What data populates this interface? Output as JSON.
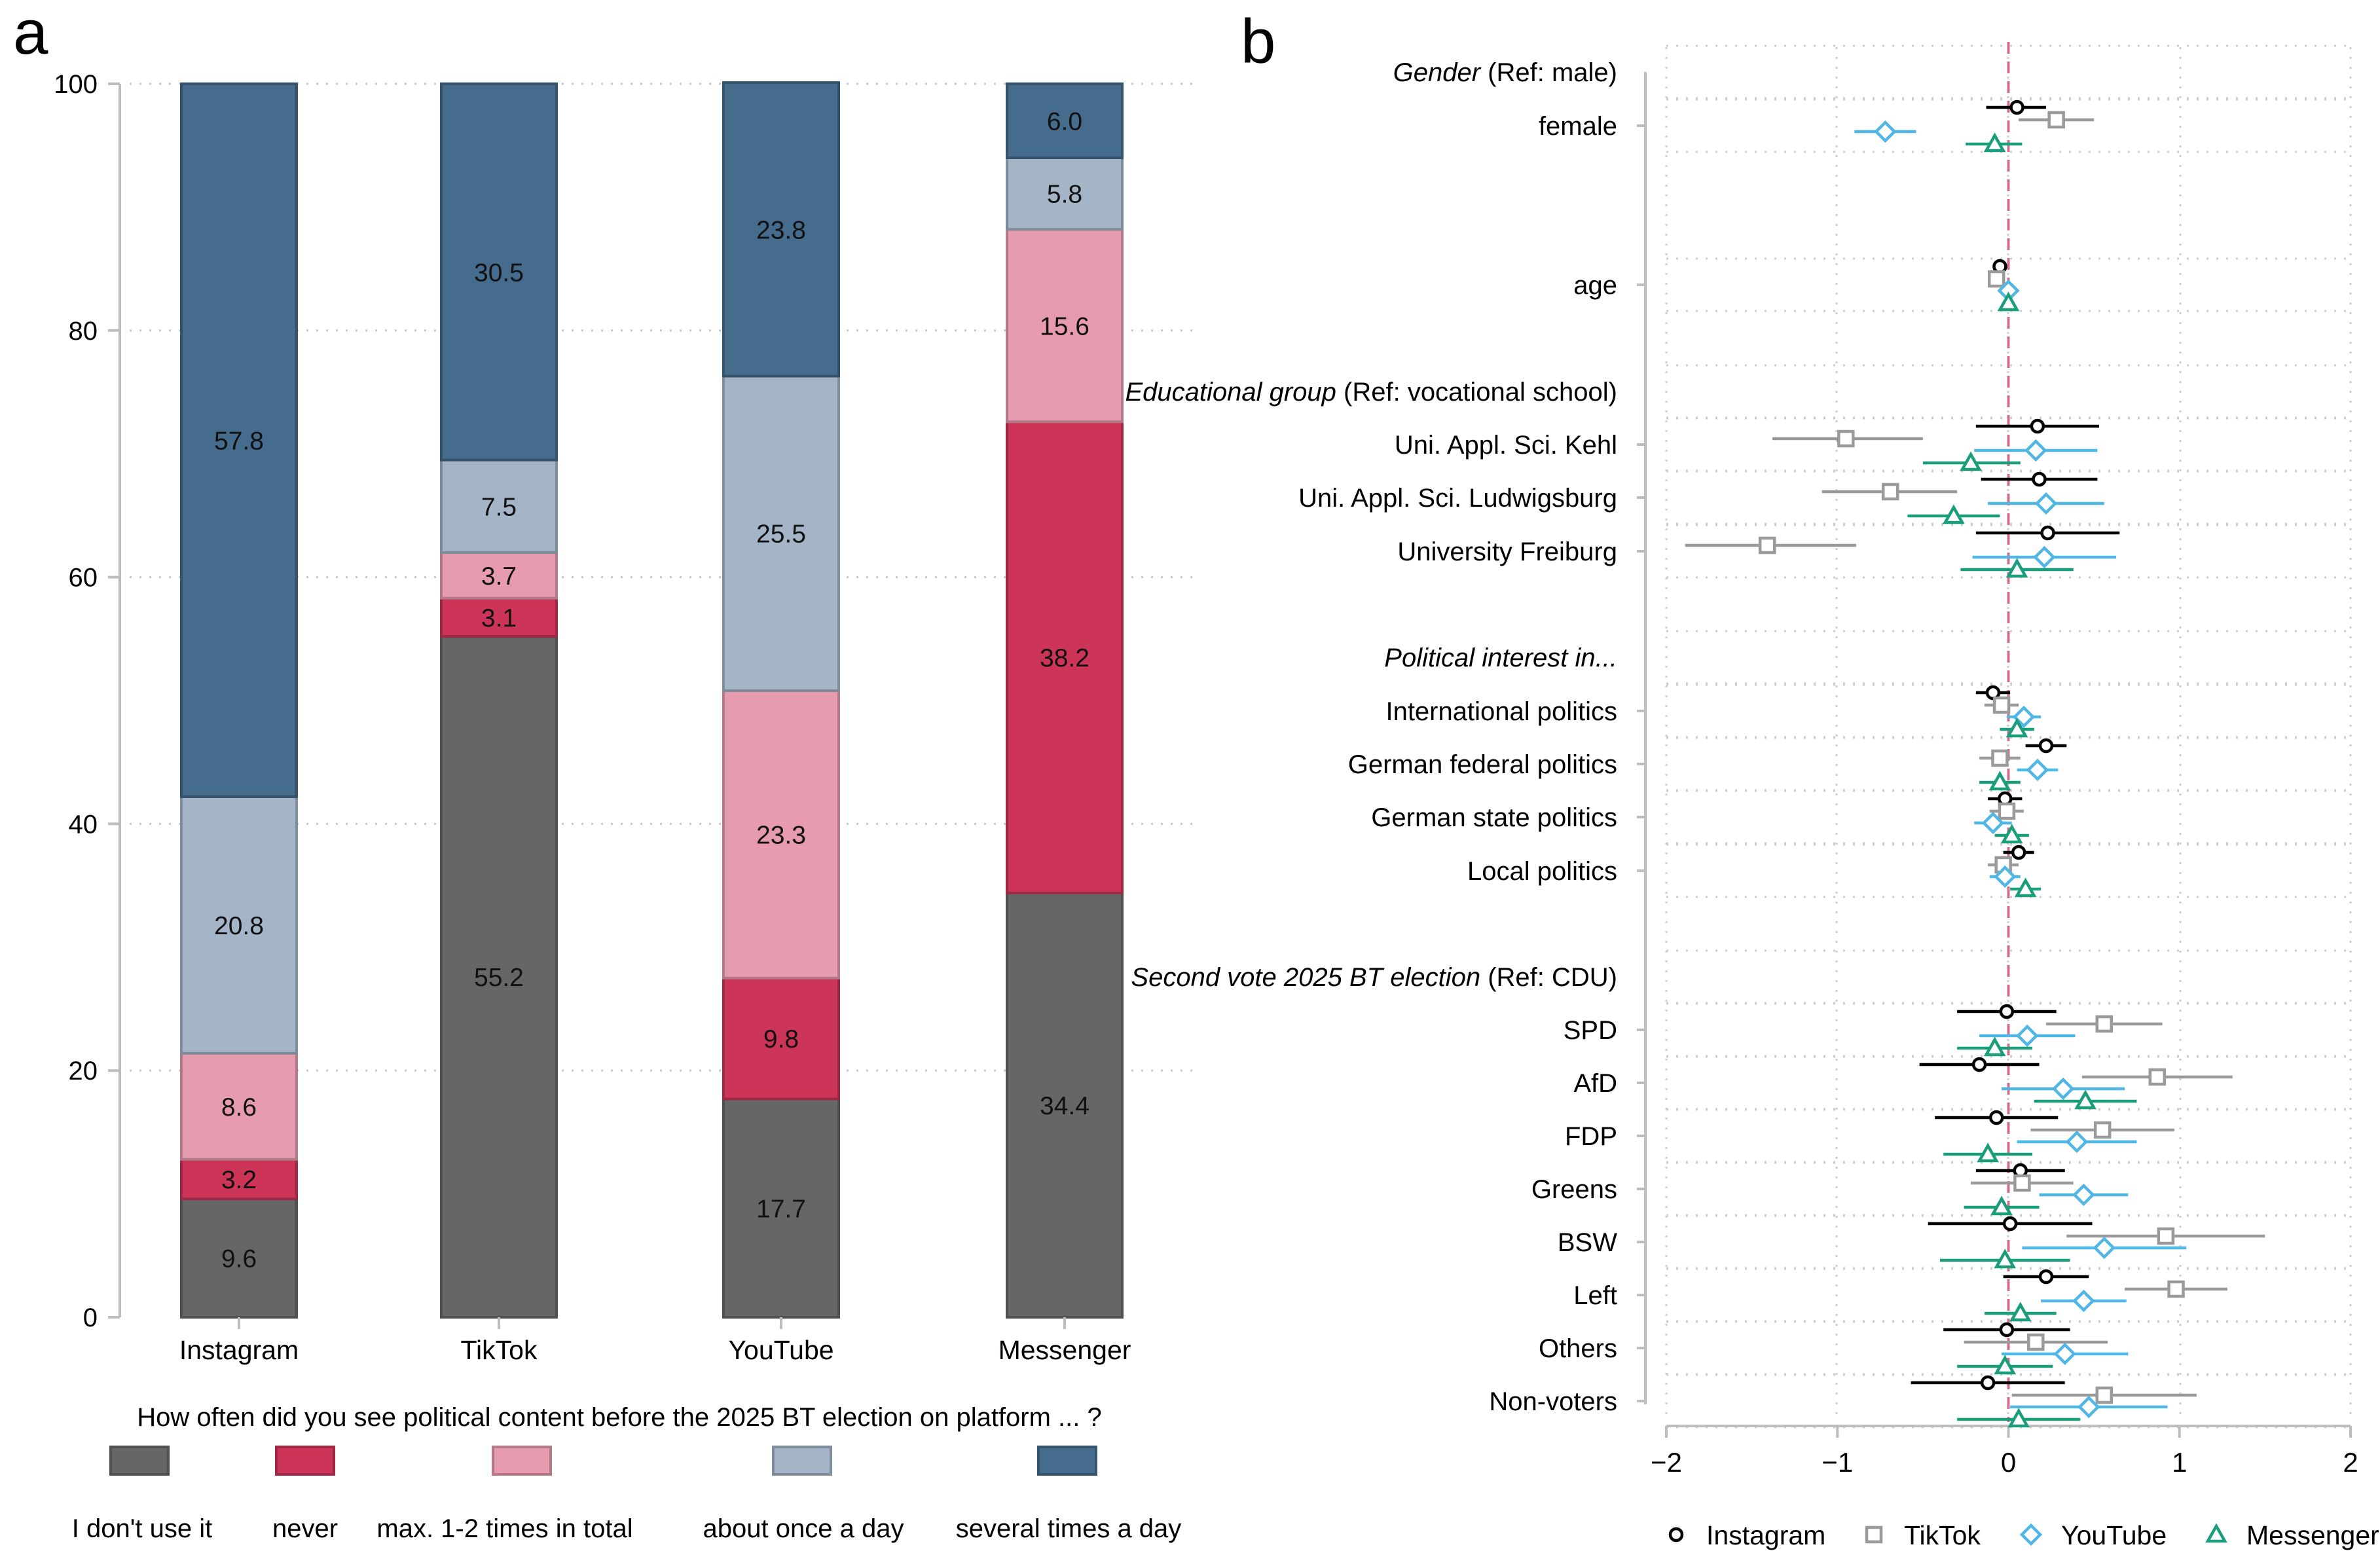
{
  "panel_labels": {
    "a": "a",
    "b": "b"
  },
  "colors": {
    "dont_use": "#666666",
    "never": "#cc3558",
    "max12": "#e79baf",
    "once_day": "#a3b5c7",
    "several_day": "#456b8d",
    "instagram": "#000000",
    "tiktok": "#9a9a9a",
    "youtube": "#4fb6e6",
    "messenger": "#1a9d7a",
    "refline": "#d4708e"
  },
  "chart_data": [
    {
      "type": "bar",
      "panel": "a",
      "stacked": true,
      "categories": [
        "Instagram",
        "TikTok",
        "YouTube",
        "Messenger"
      ],
      "ylim": [
        0,
        100
      ],
      "yticks": [
        0,
        20,
        40,
        60,
        80,
        100
      ],
      "grid": true,
      "series": [
        {
          "key": "dont_use",
          "name": "I don't use it",
          "values": [
            9.6,
            55.2,
            17.7,
            34.4
          ],
          "labels": [
            "9.6",
            "55.2",
            "17.7",
            "34.4"
          ]
        },
        {
          "key": "never",
          "name": "never",
          "values": [
            3.2,
            3.1,
            9.8,
            38.2
          ],
          "labels": [
            "3.2",
            "3.1",
            "9.8",
            "38.2"
          ]
        },
        {
          "key": "max12",
          "name": "max. 1-2 times in total",
          "values": [
            8.6,
            3.7,
            23.3,
            15.6
          ],
          "labels": [
            "8.6",
            "3.7",
            "23.3",
            "15.6"
          ]
        },
        {
          "key": "once_day",
          "name": "about once a day",
          "values": [
            20.8,
            7.5,
            25.5,
            5.8
          ],
          "labels": [
            "20.8",
            "7.5",
            "25.5",
            "5.8"
          ]
        },
        {
          "key": "several_day",
          "name": "several times a day",
          "values": [
            57.8,
            30.5,
            23.8,
            6.0
          ],
          "labels": [
            "57.8",
            "30.5",
            "23.8",
            "6.0"
          ]
        }
      ],
      "legend_title": "How often did you see political content before the 2025 BT election on platform ... ?",
      "legend_position": "bottom"
    },
    {
      "type": "scatter",
      "subtype": "coefficient-plot",
      "panel": "b",
      "xlim": [
        -2,
        2
      ],
      "xticks": [
        -2,
        -1,
        0,
        1,
        2
      ],
      "xtick_labels": [
        "−2",
        "−1",
        "0",
        "1",
        "2"
      ],
      "reference_line": 0,
      "series_names": [
        "Instagram",
        "TikTok",
        "YouTube",
        "Messenger"
      ],
      "series_keys": [
        "instagram",
        "tiktok",
        "youtube",
        "messenger"
      ],
      "markers": [
        "circle",
        "square",
        "diamond",
        "triangle"
      ],
      "legend_position": "bottom",
      "rows": [
        {
          "type": "header",
          "italic": "Gender",
          "rest": " (Ref: male)"
        },
        {
          "type": "var",
          "label": "female",
          "est": [
            [
              0.05,
              -0.13,
              0.22
            ],
            [
              0.28,
              0.06,
              0.5
            ],
            [
              -0.72,
              -0.9,
              -0.54
            ],
            [
              -0.08,
              -0.25,
              0.08
            ]
          ]
        },
        {
          "type": "gap"
        },
        {
          "type": "var",
          "label": "age",
          "est": [
            [
              -0.05,
              -0.07,
              -0.03
            ],
            [
              -0.07,
              -0.09,
              -0.05
            ],
            [
              0.0,
              -0.02,
              0.02
            ],
            [
              0.0,
              -0.02,
              0.02
            ]
          ]
        },
        {
          "type": "header",
          "italic": "Educational group",
          "rest": "  (Ref: vocational school)"
        },
        {
          "type": "var",
          "label": "Uni. Appl. Sci. Kehl",
          "est": [
            [
              0.17,
              -0.19,
              0.53
            ],
            [
              -0.95,
              -1.38,
              -0.5
            ],
            [
              0.16,
              -0.2,
              0.52
            ],
            [
              -0.22,
              -0.5,
              0.07
            ]
          ]
        },
        {
          "type": "var",
          "label": "Uni. Appl. Sci. Ludwigsburg",
          "est": [
            [
              0.18,
              -0.16,
              0.52
            ],
            [
              -0.69,
              -1.09,
              -0.3
            ],
            [
              0.22,
              -0.12,
              0.56
            ],
            [
              -0.32,
              -0.59,
              -0.05
            ]
          ]
        },
        {
          "type": "var",
          "label": "University Freiburg",
          "est": [
            [
              0.23,
              -0.19,
              0.65
            ],
            [
              -1.41,
              -1.89,
              -0.89
            ],
            [
              0.21,
              -0.21,
              0.63
            ],
            [
              0.05,
              -0.28,
              0.38
            ]
          ]
        },
        {
          "type": "header",
          "italic": "Political interest in...",
          "rest": ""
        },
        {
          "type": "var",
          "label": "International politics",
          "est": [
            [
              -0.09,
              -0.19,
              0.01
            ],
            [
              -0.04,
              -0.14,
              0.06
            ],
            [
              0.09,
              -0.01,
              0.19
            ],
            [
              0.05,
              -0.05,
              0.15
            ]
          ]
        },
        {
          "type": "var",
          "label": "German federal politics",
          "est": [
            [
              0.22,
              0.1,
              0.34
            ],
            [
              -0.05,
              -0.17,
              0.07
            ],
            [
              0.17,
              0.05,
              0.29
            ],
            [
              -0.05,
              -0.17,
              0.07
            ]
          ]
        },
        {
          "type": "var",
          "label": "German state politics",
          "est": [
            [
              -0.02,
              -0.12,
              0.08
            ],
            [
              -0.01,
              -0.11,
              0.09
            ],
            [
              -0.09,
              -0.2,
              0.02
            ],
            [
              0.02,
              -0.08,
              0.12
            ]
          ]
        },
        {
          "type": "var",
          "label": "Local politics",
          "est": [
            [
              0.06,
              -0.03,
              0.15
            ],
            [
              -0.03,
              -0.12,
              0.06
            ],
            [
              -0.02,
              -0.11,
              0.07
            ],
            [
              0.1,
              0.01,
              0.19
            ]
          ]
        },
        {
          "type": "header",
          "italic": "Second vote 2025 BT election",
          "rest": "  (Ref: CDU)"
        },
        {
          "type": "var",
          "label": "SPD",
          "est": [
            [
              -0.01,
              -0.3,
              0.28
            ],
            [
              0.56,
              0.22,
              0.9
            ],
            [
              0.11,
              -0.17,
              0.39
            ],
            [
              -0.08,
              -0.3,
              0.14
            ]
          ]
        },
        {
          "type": "var",
          "label": "AfD",
          "est": [
            [
              -0.17,
              -0.52,
              0.18
            ],
            [
              0.87,
              0.43,
              1.31
            ],
            [
              0.32,
              -0.04,
              0.68
            ],
            [
              0.45,
              0.15,
              0.75
            ]
          ]
        },
        {
          "type": "var",
          "label": "FDP",
          "est": [
            [
              -0.07,
              -0.43,
              0.29
            ],
            [
              0.55,
              0.13,
              0.97
            ],
            [
              0.4,
              0.05,
              0.75
            ],
            [
              -0.12,
              -0.38,
              0.14
            ]
          ]
        },
        {
          "type": "var",
          "label": "Greens",
          "est": [
            [
              0.07,
              -0.19,
              0.33
            ],
            [
              0.08,
              -0.22,
              0.38
            ],
            [
              0.44,
              0.18,
              0.7
            ],
            [
              -0.04,
              -0.26,
              0.18
            ]
          ]
        },
        {
          "type": "var",
          "label": "BSW",
          "est": [
            [
              0.01,
              -0.47,
              0.49
            ],
            [
              0.92,
              0.34,
              1.5
            ],
            [
              0.56,
              0.08,
              1.04
            ],
            [
              -0.02,
              -0.4,
              0.36
            ]
          ]
        },
        {
          "type": "var",
          "label": "Left",
          "est": [
            [
              0.22,
              -0.03,
              0.47
            ],
            [
              0.98,
              0.68,
              1.28
            ],
            [
              0.44,
              0.19,
              0.69
            ],
            [
              0.07,
              -0.14,
              0.28
            ]
          ]
        },
        {
          "type": "var",
          "label": "Others",
          "est": [
            [
              -0.01,
              -0.38,
              0.36
            ],
            [
              0.16,
              -0.26,
              0.58
            ],
            [
              0.33,
              -0.04,
              0.7
            ],
            [
              -0.02,
              -0.3,
              0.26
            ]
          ]
        },
        {
          "type": "var",
          "label": "Non-voters",
          "est": [
            [
              -0.12,
              -0.57,
              0.33
            ],
            [
              0.56,
              0.02,
              1.1
            ],
            [
              0.47,
              0.01,
              0.93
            ],
            [
              0.06,
              -0.3,
              0.42
            ]
          ]
        }
      ]
    }
  ]
}
